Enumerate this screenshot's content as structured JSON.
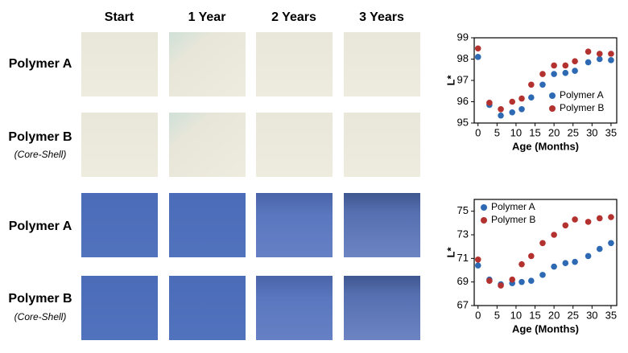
{
  "grid": {
    "columns": [
      "Start",
      "1 Year",
      "2 Years",
      "3 Years"
    ],
    "rows": [
      {
        "label": "Polymer A"
      },
      {
        "label": "Polymer B",
        "sublabel": "(Core-Shell)"
      },
      {
        "label": "Polymer A"
      },
      {
        "label": "Polymer B",
        "sublabel": "(Core-Shell)"
      }
    ]
  },
  "chart_data": [
    {
      "type": "scatter",
      "x_label": "Age (Months)",
      "y_label": "L*",
      "xlim": [
        -1,
        36.5
      ],
      "xticks": [
        0,
        5,
        10,
        15,
        20,
        25,
        30,
        35
      ],
      "ylim": [
        95,
        99
      ],
      "yticks": [
        95,
        96,
        97,
        98,
        99
      ],
      "legend": "bottom-right",
      "x": [
        0,
        3,
        6,
        9,
        11.5,
        14,
        17,
        20,
        23,
        25.5,
        29,
        32,
        35
      ],
      "series": [
        {
          "name": "Polymer A",
          "color": "#2e6ab3",
          "values": [
            98.1,
            95.85,
            95.35,
            95.5,
            95.65,
            96.2,
            96.8,
            97.3,
            97.35,
            97.45,
            97.85,
            98.0,
            97.95
          ]
        },
        {
          "name": "Polymer B",
          "color": "#b3312e",
          "values": [
            98.5,
            95.95,
            95.65,
            96.0,
            96.15,
            96.8,
            97.3,
            97.7,
            97.7,
            97.9,
            98.35,
            98.25,
            98.25
          ]
        }
      ]
    },
    {
      "type": "scatter",
      "x_label": "Age (Months)",
      "y_label": "L*",
      "xlim": [
        -1,
        36.5
      ],
      "xticks": [
        0,
        5,
        10,
        15,
        20,
        25,
        30,
        35
      ],
      "ylim": [
        67,
        76
      ],
      "yticks": [
        67,
        69,
        71,
        73,
        75
      ],
      "legend": "top-left",
      "x": [
        0,
        3,
        6,
        9,
        11.5,
        14,
        17,
        20,
        23,
        25.5,
        29,
        32,
        35
      ],
      "series": [
        {
          "name": "Polymer A",
          "color": "#2e6ab3",
          "values": [
            70.4,
            69.2,
            68.8,
            68.9,
            69.0,
            69.1,
            69.6,
            70.3,
            70.6,
            70.7,
            71.2,
            71.8,
            72.3
          ]
        },
        {
          "name": "Polymer B",
          "color": "#b3312e",
          "values": [
            70.9,
            69.1,
            68.7,
            69.2,
            70.5,
            71.2,
            72.3,
            73.0,
            73.8,
            74.3,
            74.1,
            74.4,
            74.5
          ]
        }
      ]
    }
  ]
}
